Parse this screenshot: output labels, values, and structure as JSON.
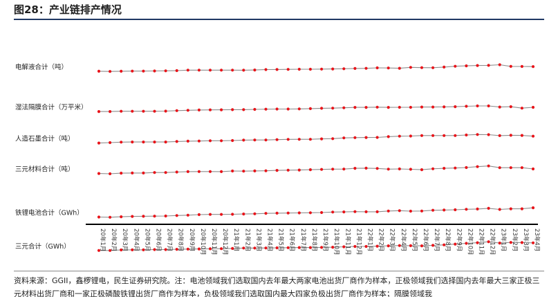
{
  "figure": {
    "title": "图28：产业链排产情况",
    "source": "资料来源：GGII，鑫椤锂电，民生证券研究院。注：电池领域我们选取国内去年最大两家电池出货厂商作为样本，正极领域我们选择国内去年最大三家正极三元材料出货厂商和一家正极磷酸铁锂出货厂商作为样本，负极领域我们选取国内最大四家负极出货厂商作为样本；隔膜领域我"
  },
  "colors": {
    "line": "#8c8c8c",
    "marker": "#e8141a",
    "axis": "#000000",
    "accent": "#1f3864"
  },
  "chart_data": {
    "type": "line",
    "title": "",
    "xlabel": "",
    "ylabel": "",
    "y_axis": "none",
    "grid": false,
    "legend": "none",
    "categories": [
      "20年1月",
      "20年2月",
      "20年3月",
      "20年4月",
      "20年5月",
      "20年6月",
      "20年7月",
      "20年8月",
      "20年9月",
      "20年10月",
      "20年11月",
      "20年12月",
      "21年1月",
      "21年2月",
      "21年3月",
      "21年4月",
      "21年5月",
      "21年6月",
      "21年7月",
      "21年8月",
      "21年9月",
      "21年10月",
      "21年11月",
      "21年12月",
      "22年1月",
      "22年2月",
      "22年3月",
      "22年4月",
      "22年5月",
      "22年6月",
      "22年7月",
      "22年8月",
      "22年9月",
      "22年10月",
      "22年11月",
      "22年12月",
      "23年1月",
      "23年2月",
      "23年3月",
      "23年4月"
    ],
    "series": [
      {
        "name": "电解液合计（吨）",
        "values": [
          66,
          68,
          66,
          65,
          65,
          64,
          63,
          61,
          57,
          57,
          57,
          57,
          57,
          58,
          56,
          53,
          52,
          51,
          50,
          50,
          49,
          48,
          46,
          44,
          43,
          39,
          40,
          42,
          35,
          37,
          38,
          33,
          26,
          23,
          20,
          19,
          14,
          27,
          28,
          29
        ]
      },
      {
        "name": "湿法隔膜合计（万平米）",
        "values": [
          106,
          106,
          104,
          104,
          104,
          104,
          103,
          99,
          96,
          94,
          93,
          92,
          91,
          91,
          89,
          87,
          86,
          86,
          85,
          83,
          80,
          79,
          76,
          73,
          73,
          71,
          73,
          72,
          72,
          70,
          70,
          69,
          67,
          64,
          61,
          61,
          70,
          67,
          79,
          72
        ]
      },
      {
        "name": "人造石墨合计（吨）",
        "values": [
          142,
          139,
          135,
          134,
          134,
          134,
          134,
          130,
          127,
          126,
          124,
          124,
          122,
          119,
          118,
          118,
          115,
          113,
          112,
          112,
          109,
          107,
          101,
          99,
          98,
          97,
          91,
          87,
          86,
          82,
          82,
          82,
          82,
          78,
          74,
          75,
          83,
          80,
          81,
          87
        ]
      },
      {
        "name": "三元材料合计（吨）",
        "values": [
          148,
          150,
          145,
          144,
          144,
          140,
          140,
          136,
          133,
          132,
          132,
          133,
          128,
          129,
          127,
          126,
          123,
          121,
          120,
          117,
          115,
          113,
          112,
          106,
          105,
          107,
          113,
          111,
          114,
          117,
          110,
          106,
          104,
          100,
          93,
          87,
          101,
          101,
          101,
          111
        ]
      },
      {
        "name": "铁锂电池合计（GWh）",
        "values": [
          197,
          199,
          195,
          192,
          191,
          190,
          189,
          185,
          182,
          178,
          176,
          176,
          175,
          173,
          171,
          168,
          166,
          165,
          164,
          163,
          161,
          157,
          156,
          154,
          155,
          155,
          149,
          146,
          150,
          149,
          143,
          141,
          139,
          135,
          133,
          127,
          136,
          131,
          131,
          123
        ]
      },
      {
        "name": "三元合计（GWh）",
        "values": [
          232,
          232,
          228,
          227,
          227,
          225,
          225,
          223,
          221,
          220,
          219,
          218,
          216,
          213,
          213,
          212,
          211,
          210,
          209,
          209,
          208,
          206,
          203,
          200,
          200,
          198,
          195,
          193,
          194,
          195,
          191,
          187,
          181,
          175,
          170,
          162,
          173,
          168,
          169,
          171
        ]
      }
    ]
  }
}
